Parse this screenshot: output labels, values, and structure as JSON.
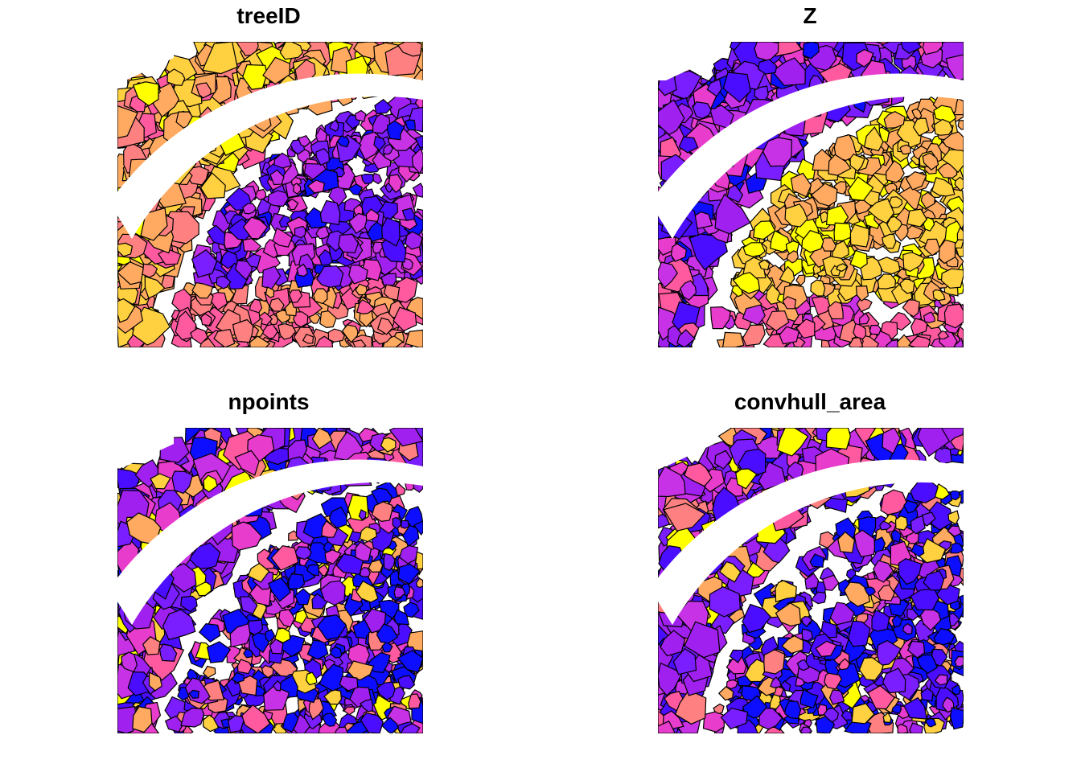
{
  "panels": [
    {
      "title": "treeID",
      "attribute": "treeID",
      "dominant_palette": "mixed"
    },
    {
      "title": "Z",
      "attribute": "Z",
      "dominant_palette": "high"
    },
    {
      "title": "npoints",
      "attribute": "npoints",
      "dominant_palette": "low"
    },
    {
      "title": "convhull_area",
      "attribute": "convhull_area",
      "dominant_palette": "low"
    }
  ],
  "palette": [
    "#0d0dff",
    "#4b0dff",
    "#7a1dff",
    "#a020f0",
    "#c832e6",
    "#e83ccc",
    "#ff5aa0",
    "#ff8080",
    "#ffaa60",
    "#ffd040",
    "#ffff00"
  ],
  "border_color": "#000000",
  "background": "#ffffff"
}
